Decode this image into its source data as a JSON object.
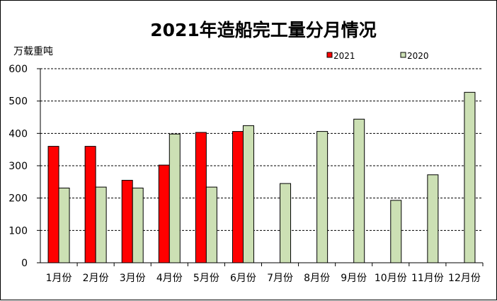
{
  "chart_data": {
    "type": "bar",
    "title": "2021年造船完工量分月情况",
    "ylabel": "万载重吨",
    "xlabel": "",
    "categories": [
      "1月份",
      "2月份",
      "3月份",
      "4月份",
      "5月份",
      "6月份",
      "7月份",
      "8月份",
      "9月份",
      "10月份",
      "11月份",
      "12月份"
    ],
    "series": [
      {
        "name": "2021",
        "color": "#ff0000",
        "values": [
          360,
          360,
          255,
          302,
          403,
          406,
          null,
          null,
          null,
          null,
          null,
          null
        ]
      },
      {
        "name": "2020",
        "color": "#cce0b4",
        "values": [
          231,
          234,
          231,
          398,
          234,
          424,
          245,
          406,
          444,
          193,
          272,
          527
        ]
      }
    ],
    "ylim": [
      0,
      600
    ],
    "yticks": [
      "0",
      "100",
      "200",
      "300",
      "400",
      "500",
      "600"
    ],
    "grid": true,
    "legend_position": "top-right"
  }
}
